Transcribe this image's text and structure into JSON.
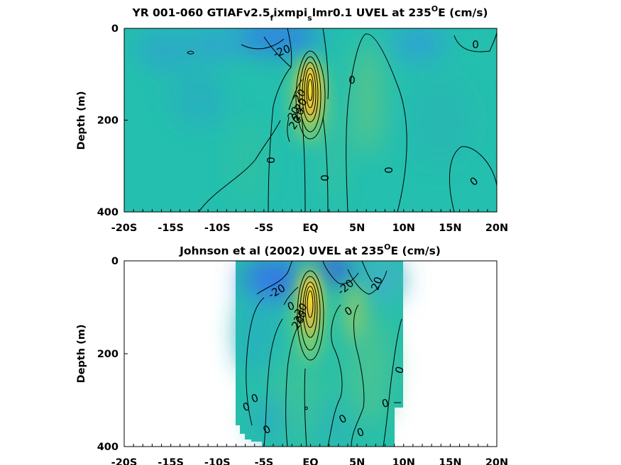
{
  "chart_data": [
    {
      "type": "heatmap",
      "title": {
        "pre": "YR 001-060 GTIAFv2.5",
        "sub1": "f",
        "mid": "ixmpi",
        "sub2": "s",
        "post": "lmr0.1 UVEL at 235",
        "sup": "O",
        "end": "E (cm/s)"
      },
      "ylabel": "Depth (m)",
      "xlim": [
        -20,
        20
      ],
      "ylim": [
        0,
        400
      ],
      "yreverse": true,
      "x_ticks": [
        "-20S",
        "-15S",
        "-10S",
        "-5S",
        "EQ",
        "5N",
        "10N",
        "15N",
        "20N"
      ],
      "y_ticks": [
        "0",
        "200",
        "400"
      ],
      "contour_interval": 10,
      "contour_labels": [
        "-20",
        "0",
        "0",
        "0",
        "0",
        "0",
        "0",
        "20",
        "20",
        "20",
        "20",
        "20"
      ],
      "undercurrent_core": {
        "lat": 0,
        "depth": 120,
        "max_speed_est": 110
      },
      "missing_data": false
    },
    {
      "type": "heatmap",
      "title": {
        "pre": "Johnson et al (2002) UVEL at 235",
        "sup": "O",
        "end": "E (cm/s)"
      },
      "ylabel": "Depth (m)",
      "xlim": [
        -20,
        20
      ],
      "ylim": [
        0,
        400
      ],
      "yreverse": true,
      "x_ticks": [
        "-20S",
        "-15S",
        "-10S",
        "-5S",
        "EQ",
        "5N",
        "10N",
        "15N",
        "20N"
      ],
      "y_ticks": [
        "0",
        "200",
        "400"
      ],
      "contour_interval": 10,
      "contour_labels": [
        "-20",
        "-20",
        "20",
        "0",
        "0",
        "0",
        "0",
        "0",
        "0",
        "0",
        "0",
        "0",
        "0",
        "20",
        "20",
        "20"
      ],
      "undercurrent_core": {
        "lat": 0,
        "depth": 90,
        "max_speed_est": 100
      },
      "data_extent_lat": [
        -8,
        10
      ],
      "missing_data": true
    }
  ],
  "colors": {
    "background_field": "#27c0a9",
    "deep_blue": "#3b6fe8",
    "yellow_core": "#f5ee1e",
    "orange": "#e8b740"
  }
}
